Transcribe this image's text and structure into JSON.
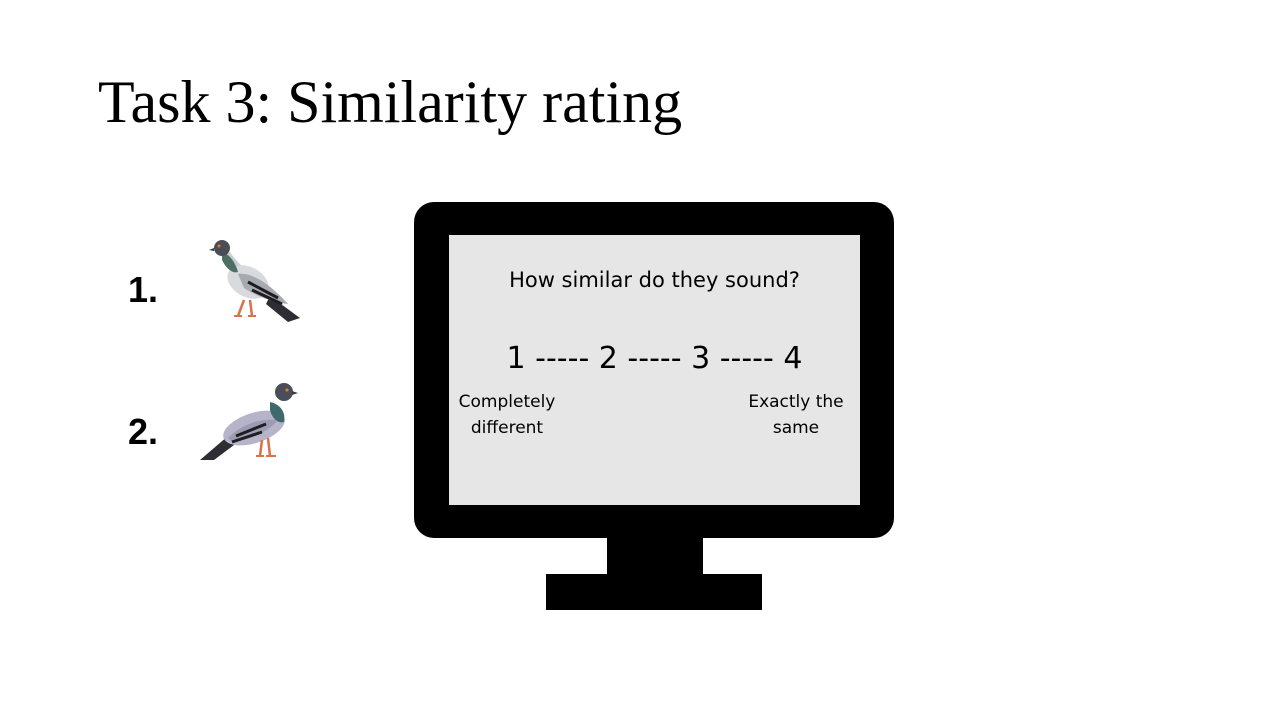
{
  "slide": {
    "title": "Task 3: Similarity rating"
  },
  "stimuli": [
    {
      "number": "1.",
      "icon": "pigeon-icon"
    },
    {
      "number": "2.",
      "icon": "pigeon-icon"
    }
  ],
  "monitor": {
    "question": "How similar do they sound?",
    "scale": "1 ----- 2 ----- 3 ----- 4",
    "left_anchor": {
      "line1": "Completely",
      "line2": "different"
    },
    "right_anchor": {
      "line1": "Exactly the",
      "line2": "same"
    }
  },
  "colors": {
    "screen_background": "#e7e6e6",
    "frame": "#000000"
  }
}
